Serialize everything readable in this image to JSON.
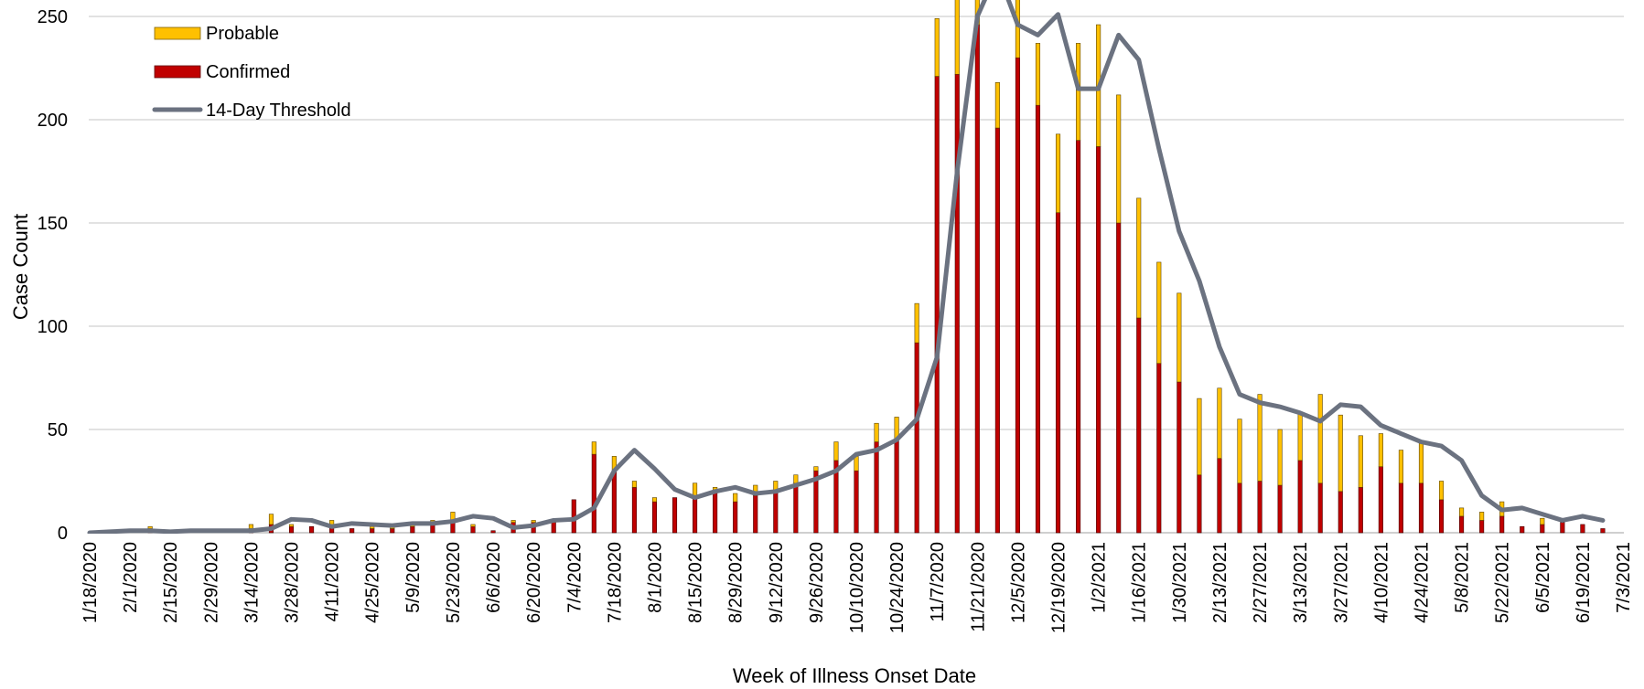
{
  "chart_data": {
    "type": "bar",
    "stacked": true,
    "xlabel": "Week of Illness Onset Date",
    "ylabel": "Case Count",
    "ylim": [
      0,
      250
    ],
    "yticks": [
      0,
      50,
      100,
      150,
      200,
      250
    ],
    "grid": true,
    "legend_position": "top-left",
    "categories": [
      "1/18/2020",
      "1/25/2020",
      "2/1/2020",
      "2/8/2020",
      "2/15/2020",
      "2/22/2020",
      "2/29/2020",
      "3/7/2020",
      "3/14/2020",
      "3/21/2020",
      "3/28/2020",
      "4/4/2020",
      "4/11/2020",
      "4/18/2020",
      "4/25/2020",
      "5/2/2020",
      "5/9/2020",
      "5/16/2020",
      "5/23/2020",
      "5/30/2020",
      "6/6/2020",
      "6/13/2020",
      "6/20/2020",
      "6/27/2020",
      "7/4/2020",
      "7/11/2020",
      "7/18/2020",
      "7/25/2020",
      "8/1/2020",
      "8/8/2020",
      "8/15/2020",
      "8/22/2020",
      "8/29/2020",
      "9/5/2020",
      "9/12/2020",
      "9/19/2020",
      "9/26/2020",
      "10/3/2020",
      "10/10/2020",
      "10/17/2020",
      "10/24/2020",
      "10/31/2020",
      "11/7/2020",
      "11/14/2020",
      "11/21/2020",
      "11/28/2020",
      "12/5/2020",
      "12/12/2020",
      "12/19/2020",
      "12/26/2020",
      "1/2/2021",
      "1/9/2021",
      "1/16/2021",
      "1/23/2021",
      "1/30/2021",
      "2/6/2021",
      "2/13/2021",
      "2/20/2021",
      "2/27/2021",
      "3/6/2021",
      "3/13/2021",
      "3/20/2021",
      "3/27/2021",
      "4/3/2021",
      "4/10/2021",
      "4/17/2021",
      "4/24/2021",
      "5/1/2021",
      "5/8/2021",
      "5/15/2021",
      "5/22/2021",
      "5/29/2021",
      "6/5/2021",
      "6/12/2021",
      "6/19/2021",
      "6/26/2021",
      "7/3/2021"
    ],
    "tick_labels": [
      "1/18/2020",
      "2/1/2020",
      "2/15/2020",
      "2/29/2020",
      "3/14/2020",
      "3/28/2020",
      "4/11/2020",
      "4/25/2020",
      "5/9/2020",
      "5/23/2020",
      "6/6/2020",
      "6/20/2020",
      "7/4/2020",
      "7/18/2020",
      "8/1/2020",
      "8/15/2020",
      "8/29/2020",
      "9/12/2020",
      "9/26/2020",
      "10/10/2020",
      "10/24/2020",
      "11/7/2020",
      "11/21/2020",
      "12/5/2020",
      "12/19/2020",
      "1/2/2021",
      "1/16/2021",
      "1/30/2021",
      "2/13/2021",
      "2/27/2021",
      "3/13/2021",
      "3/27/2021",
      "4/10/2021",
      "4/24/2021",
      "5/8/2021",
      "5/22/2021",
      "6/5/2021",
      "6/19/2021",
      "7/3/2021"
    ],
    "series": [
      {
        "name": "Confirmed",
        "kind": "bar",
        "color": "#C00000",
        "values": [
          0,
          0,
          0,
          2,
          0,
          0,
          0,
          0,
          2,
          4,
          3,
          3,
          3,
          2,
          2,
          2,
          3,
          4,
          5,
          3,
          1,
          5,
          5,
          5,
          16,
          38,
          30,
          22,
          15,
          17,
          17,
          20,
          15,
          18,
          20,
          24,
          30,
          35,
          30,
          44,
          45,
          92,
          221,
          222,
          246,
          196,
          230,
          207,
          155,
          190,
          187,
          150,
          104,
          82,
          73,
          28,
          36,
          24,
          25,
          23,
          35,
          24,
          20,
          22,
          32,
          24,
          24,
          16,
          8,
          6,
          8,
          3,
          4,
          5,
          4,
          2,
          0
        ]
      },
      {
        "name": "Probable",
        "kind": "bar",
        "color": "#FFC000",
        "values": [
          0,
          0,
          0,
          1,
          0,
          0,
          0,
          0,
          2,
          5,
          1,
          0,
          3,
          0,
          1,
          1,
          1,
          2,
          5,
          1,
          0,
          1,
          1,
          1,
          0,
          6,
          7,
          3,
          2,
          0,
          7,
          2,
          4,
          5,
          5,
          4,
          2,
          9,
          7,
          9,
          11,
          19,
          28,
          38,
          17,
          22,
          29,
          30,
          38,
          47,
          59,
          62,
          58,
          49,
          43,
          37,
          34,
          31,
          42,
          27,
          23,
          43,
          37,
          25,
          16,
          16,
          20,
          9,
          4,
          4,
          7,
          0,
          3,
          0,
          0,
          0,
          0
        ]
      },
      {
        "name": "14-Day Threshold",
        "kind": "line",
        "color": "#6B7280",
        "values": [
          0,
          0.5,
          1,
          1,
          0.5,
          1,
          1,
          1,
          1,
          2,
          6.5,
          6,
          3,
          4.5,
          4,
          3.5,
          4.5,
          4.5,
          5.5,
          8,
          7,
          2.5,
          3.5,
          6,
          6.5,
          12,
          30,
          40,
          31,
          21,
          17,
          20,
          22,
          19,
          20,
          23,
          26,
          30,
          38,
          40,
          45,
          55,
          85,
          175,
          250,
          272,
          246,
          241,
          251,
          215,
          215,
          241,
          229,
          186,
          146,
          122,
          90,
          67,
          63,
          61,
          58,
          54,
          62,
          61,
          52,
          48,
          44,
          42,
          35,
          18,
          11,
          12,
          9,
          6,
          8,
          6,
          null
        ]
      }
    ]
  }
}
